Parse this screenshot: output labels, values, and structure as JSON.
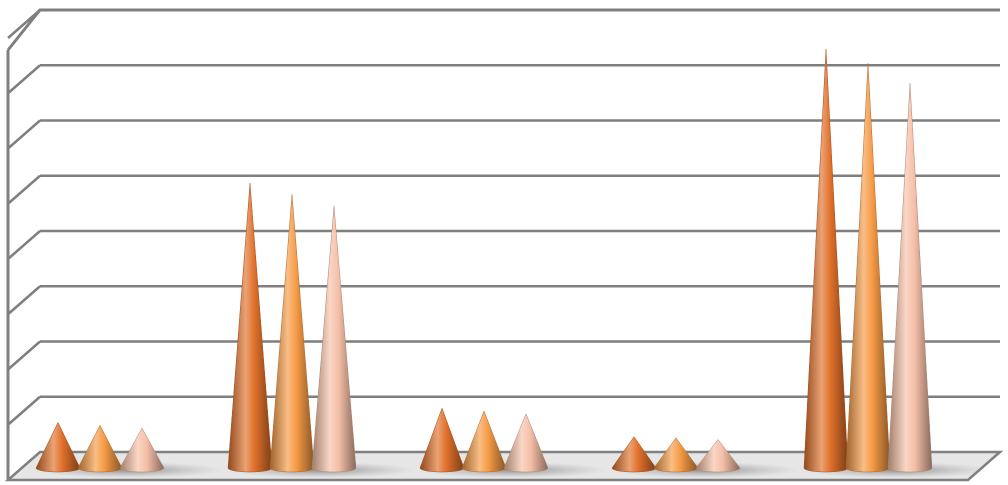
{
  "chart_data": {
    "type": "bar",
    "bar_shape": "cone",
    "projection": "3d",
    "title": "",
    "xlabel": "",
    "ylabel": "",
    "categories": [
      "",
      "",
      "",
      "",
      ""
    ],
    "series": [
      {
        "color": "#e0702a",
        "values": [
          0.8,
          5.0,
          1.05,
          0.55,
          7.35
        ]
      },
      {
        "color": "#f59a45",
        "values": [
          0.75,
          4.8,
          1.0,
          0.53,
          7.1
        ]
      },
      {
        "color": "#f6c0a8",
        "values": [
          0.7,
          4.6,
          0.95,
          0.5,
          6.75
        ]
      }
    ],
    "ylim": [
      0,
      8
    ],
    "y_gridlines": [
      1,
      2,
      3,
      4,
      5,
      6,
      7,
      8
    ],
    "grid": true,
    "legend": "none",
    "colors": {
      "gridline": "#7f7f7f",
      "floor": "#e6e6e6",
      "frame": "#808080"
    }
  }
}
